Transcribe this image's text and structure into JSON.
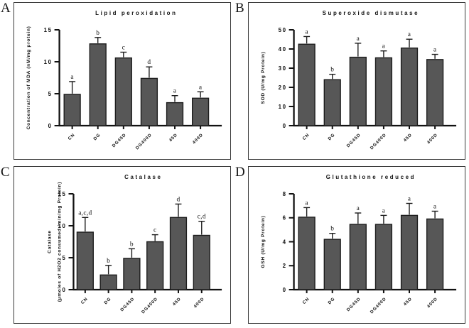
{
  "figure": {
    "background": "#ffffff",
    "panel_border_color": "#3a3a3a",
    "bar_fill": "#575757",
    "bar_stroke": "#1d1d1d",
    "axis_color": "#111111",
    "text_color": "#111111"
  },
  "chart_data": [
    {
      "panel_letter": "A",
      "type": "bar",
      "title": "Lipid peroxidation",
      "ylabel": "Concentration of MDA (nM/mg protein)",
      "categories": [
        "CN",
        "DG",
        "DG45D",
        "DG400D",
        "45D",
        "400D"
      ],
      "values": [
        4.9,
        12.8,
        10.6,
        7.4,
        3.6,
        4.3
      ],
      "errors": [
        2.0,
        1.0,
        0.9,
        1.8,
        1.1,
        1.0
      ],
      "sig_letters": [
        "a",
        "b",
        "c",
        "d",
        "a",
        "a"
      ],
      "yticks": [
        0,
        5,
        10,
        15
      ],
      "ylim": [
        0,
        15
      ],
      "legend": "none",
      "grid": false
    },
    {
      "panel_letter": "B",
      "type": "bar",
      "title": "Superoxide dismutase",
      "ylabel": "SOD (U/mg Protein)",
      "categories": [
        "CN",
        "DG",
        "DG45D",
        "DG400D",
        "45D",
        "400D"
      ],
      "values": [
        42.5,
        24.0,
        35.7,
        35.4,
        40.5,
        34.5
      ],
      "errors": [
        4.0,
        2.8,
        7.3,
        3.6,
        4.6,
        2.7
      ],
      "sig_letters": [
        "a",
        "b",
        "a",
        "a",
        "a",
        "a"
      ],
      "yticks": [
        0,
        10,
        20,
        30,
        40,
        50
      ],
      "ylim": [
        0,
        50
      ],
      "legend": "none",
      "grid": false
    },
    {
      "panel_letter": "C",
      "type": "bar",
      "title": "Catalase",
      "ylabel": "Catalase",
      "ylabel2": "(µmoles of H2O2 consumed /min/mg Protein)",
      "categories": [
        "CN",
        "DG",
        "DG45D",
        "DG400D",
        "45D",
        "400D"
      ],
      "values": [
        9.0,
        2.3,
        4.9,
        7.5,
        11.3,
        8.5
      ],
      "errors": [
        2.3,
        1.5,
        1.5,
        1.1,
        2.1,
        2.2
      ],
      "sig_letters": [
        "a,c,d",
        "b",
        "b",
        "c",
        "d",
        "c,d"
      ],
      "yticks": [
        0,
        5,
        10,
        15
      ],
      "ylim": [
        0,
        15
      ],
      "legend": "none",
      "grid": false
    },
    {
      "panel_letter": "D",
      "type": "bar",
      "title": "Glutathione reduced",
      "ylabel": "GSH (U/mg Protein)",
      "categories": [
        "CN",
        "DG",
        "DG45D",
        "DG400D",
        "45D",
        "400D"
      ],
      "values": [
        6.05,
        4.2,
        5.45,
        5.45,
        6.2,
        5.9
      ],
      "errors": [
        0.8,
        0.5,
        0.95,
        0.75,
        1.0,
        0.65
      ],
      "sig_letters": [
        "a",
        "b",
        "a",
        "a",
        "a",
        "a"
      ],
      "yticks": [
        0,
        2,
        4,
        6,
        8
      ],
      "ylim": [
        0,
        8
      ],
      "legend": "none",
      "grid": false
    }
  ]
}
